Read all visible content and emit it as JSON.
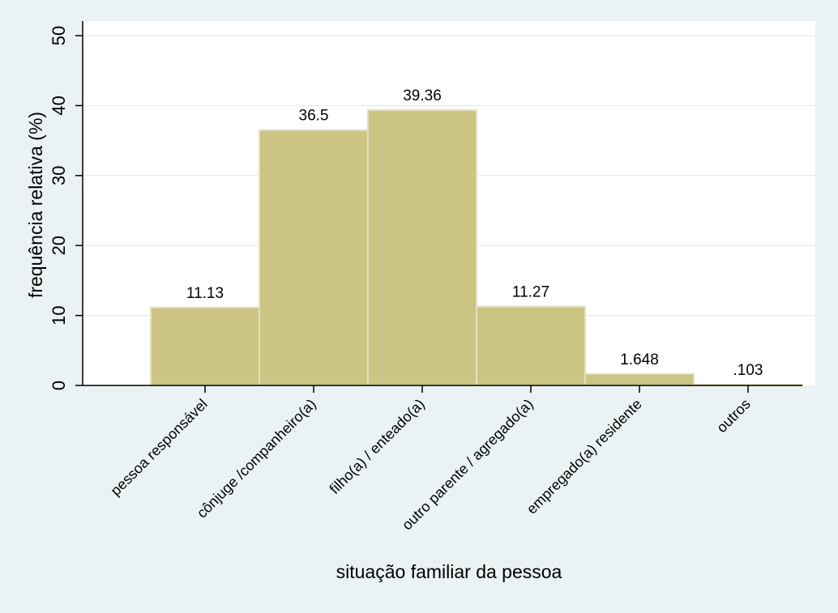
{
  "chart_data": {
    "type": "bar",
    "title": "",
    "xlabel": "situação familiar da pessoa",
    "ylabel": "frequência relativa (%)",
    "ylim": [
      0,
      50
    ],
    "yticks": [
      0,
      10,
      20,
      30,
      40,
      50
    ],
    "grid": true,
    "legend": "none",
    "categories": [
      "pessoa responsável",
      "cônjuge /companheiro(a)",
      "filho(a) / enteado(a)",
      "outro parente / agregado(a)",
      "empregado(a) residente",
      "outros"
    ],
    "values": [
      11.13,
      36.5,
      39.36,
      11.27,
      1.648,
      0.103
    ],
    "value_labels": [
      "11.13",
      "36.5",
      "39.36",
      "11.27",
      "1.648",
      ".103"
    ],
    "colors": {
      "background": "#eaf2f3",
      "plot_background": "#ffffff",
      "bar_fill": "#cbc483",
      "bar_stroke": "#e4e0c0",
      "grid": "#e8eef0",
      "axis": "#000000"
    }
  }
}
